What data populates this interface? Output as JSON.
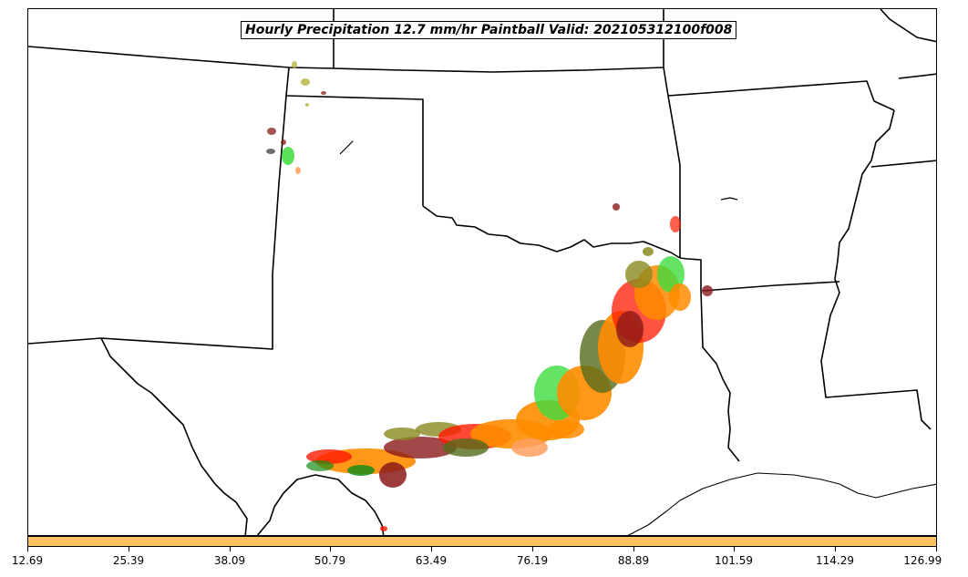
{
  "map": {
    "title": "Hourly Precipitation 12.7 mm/hr Paintball Valid: 202105312100f008",
    "colors": {
      "light_green": "#3ddc3d",
      "green": "#1a8c1a",
      "olive": "#8a8a20",
      "dark_olive": "#556b1a",
      "red": "#ff1a00",
      "dark_red": "#8b1a1a",
      "orange": "#ff8c00",
      "light_orange": "#ffa060",
      "khaki": "#b5b540",
      "gray": "#555555",
      "boundary": "#000000"
    }
  },
  "colorbar": {
    "color": "#ffc060",
    "ticks": [
      "12.69",
      "25.39",
      "38.09",
      "50.79",
      "63.49",
      "76.19",
      "88.89",
      "101.59",
      "114.29",
      "126.99"
    ]
  }
}
